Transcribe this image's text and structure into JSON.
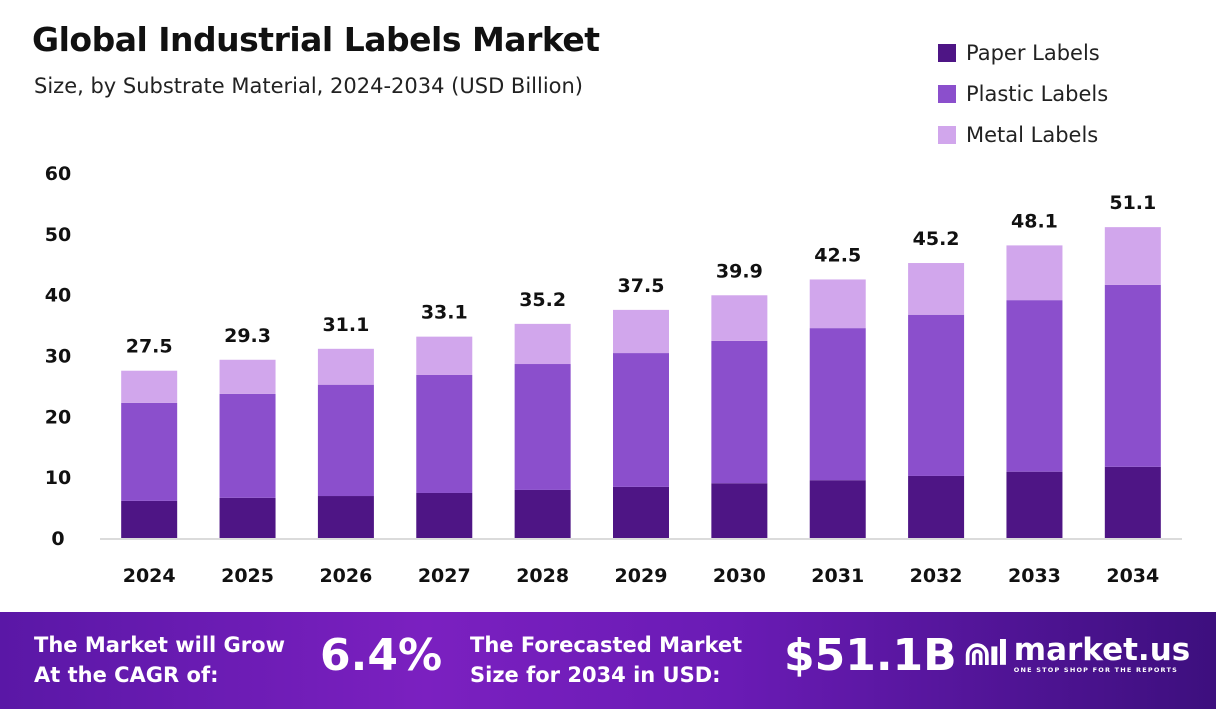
{
  "chart_data": {
    "type": "bar",
    "stacked": true,
    "title": "Global Industrial Labels Market",
    "subtitle": "Size, by Substrate Material, 2024-2034 (USD Billion)",
    "categories": [
      "2024",
      "2025",
      "2026",
      "2027",
      "2028",
      "2029",
      "2030",
      "2031",
      "2032",
      "2033",
      "2034"
    ],
    "series": [
      {
        "name": "Paper Labels",
        "color": "#4e1585",
        "values": [
          6.1,
          6.6,
          6.9,
          7.4,
          7.9,
          8.4,
          9.0,
          9.5,
          10.2,
          10.9,
          11.7
        ]
      },
      {
        "name": "Plastic Labels",
        "color": "#8b4fcc",
        "values": [
          16.1,
          17.1,
          18.3,
          19.4,
          20.7,
          22.0,
          23.4,
          25.0,
          26.5,
          28.2,
          29.9
        ]
      },
      {
        "name": "Metal Labels",
        "color": "#d1a6ec",
        "values": [
          5.3,
          5.6,
          5.9,
          6.3,
          6.6,
          7.1,
          7.5,
          8.0,
          8.5,
          9.0,
          9.5
        ]
      }
    ],
    "totals": [
      "27.5",
      "29.3",
      "31.1",
      "33.1",
      "35.2",
      "37.5",
      "39.9",
      "42.5",
      "45.2",
      "48.1",
      "51.1"
    ],
    "yticks": [
      "0",
      "10",
      "20",
      "30",
      "40",
      "50",
      "60"
    ],
    "ylim": [
      0,
      60
    ],
    "grid": false,
    "legend_position": "top-right"
  },
  "footer": {
    "cagr_label_1": "The Market will Grow",
    "cagr_label_2": "At the CAGR of:",
    "cagr_value": "6.4%",
    "forecast_label_1": "The Forecasted Market",
    "forecast_label_2": "Size for 2034 in USD:",
    "forecast_value": "$51.1B",
    "logo_name": "market.us",
    "logo_tagline": "ONE STOP SHOP FOR THE REPORTS"
  }
}
